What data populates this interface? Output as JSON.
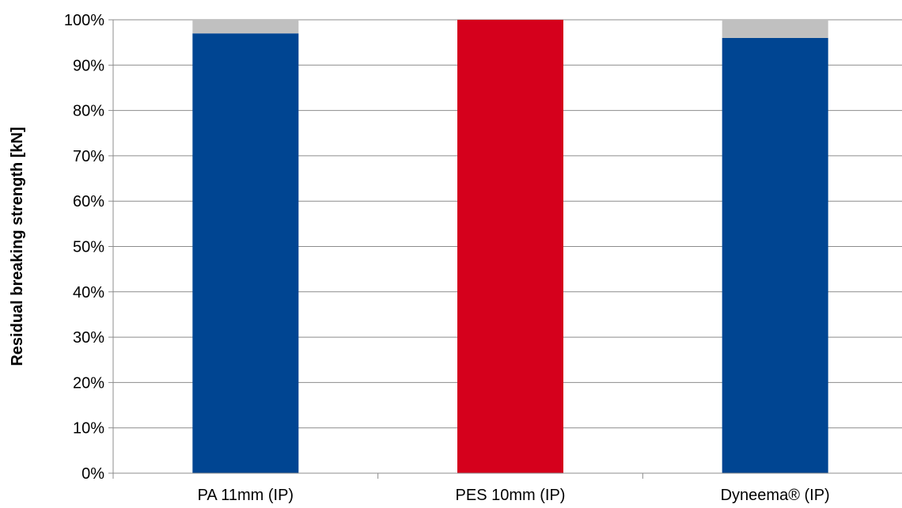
{
  "chart_data": {
    "type": "bar",
    "stacked": true,
    "categories": [
      "PA 11mm (IP)",
      "PES 10mm (IP)",
      "Dyneema® (IP)"
    ],
    "series": [
      {
        "values": [
          97,
          100,
          96
        ],
        "colors": [
          "#004592",
          "#d5001c",
          "#004592"
        ]
      },
      {
        "values": [
          3,
          0,
          4
        ],
        "color": "#c0c0c0"
      }
    ],
    "ylabel": "Residual breaking strength [kN]",
    "xlabel": "",
    "ylim": [
      0,
      100
    ],
    "yticks": [
      "0%",
      "10%",
      "20%",
      "30%",
      "40%",
      "50%",
      "60%",
      "70%",
      "80%",
      "90%",
      "100%"
    ],
    "grid": true,
    "legend": "none"
  }
}
